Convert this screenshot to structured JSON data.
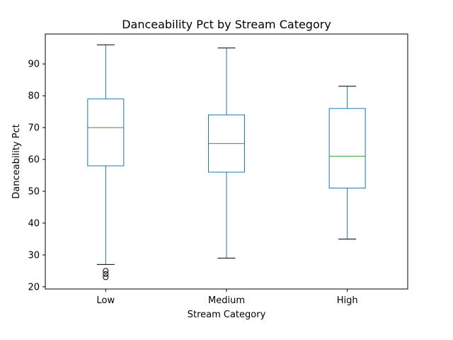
{
  "chart_data": {
    "type": "box",
    "title": "Danceability Pct by Stream Category",
    "xlabel": "Stream Category",
    "ylabel": "Danceability Pct",
    "categories": [
      "Low",
      "Medium",
      "High"
    ],
    "ylim": [
      19.3,
      99.4
    ],
    "yticks": [
      20,
      30,
      40,
      50,
      60,
      70,
      80,
      90
    ],
    "grid": false,
    "boxes": [
      {
        "category": "Low",
        "whisker_low": 27,
        "q1": 58,
        "median": 70,
        "q3": 79,
        "whisker_high": 96,
        "outliers": [
          23,
          24,
          25
        ]
      },
      {
        "category": "Medium",
        "whisker_low": 29,
        "q1": 56,
        "median": 65,
        "q3": 74,
        "whisker_high": 95,
        "outliers": []
      },
      {
        "category": "High",
        "whisker_low": 35,
        "q1": 51,
        "median": 61,
        "q3": 76,
        "whisker_high": 83,
        "outliers": []
      }
    ],
    "colors": {
      "box": "#1f77b4",
      "median": "#2ca02c",
      "cap": "#000000",
      "outlier": "#000000"
    }
  }
}
